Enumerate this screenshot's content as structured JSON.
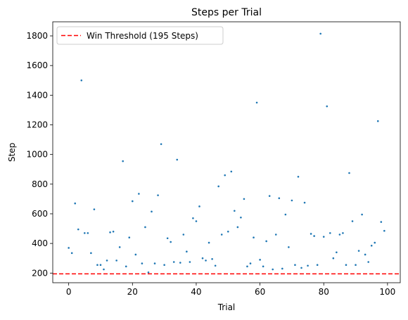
{
  "chart_data": {
    "type": "scatter",
    "title": "Steps per Trial",
    "xlabel": "Trial",
    "ylabel": "Step",
    "xlim": [
      -5,
      104
    ],
    "ylim": [
      135,
      1895
    ],
    "xticks": [
      0,
      20,
      40,
      60,
      80,
      100
    ],
    "yticks": [
      200,
      400,
      600,
      800,
      1000,
      1200,
      1400,
      1600,
      1800
    ],
    "grid": false,
    "legend_position": "top-left",
    "point_color": "#1f77b4",
    "threshold": {
      "label": "Win Threshold (195 Steps)",
      "value": 195,
      "color": "#ff0000",
      "style": "dashed"
    },
    "x": [
      0,
      1,
      2,
      3,
      4,
      5,
      6,
      7,
      8,
      9,
      10,
      11,
      12,
      13,
      14,
      15,
      16,
      17,
      18,
      19,
      20,
      21,
      22,
      23,
      24,
      25,
      26,
      27,
      28,
      29,
      30,
      31,
      32,
      33,
      34,
      35,
      36,
      37,
      38,
      39,
      40,
      41,
      42,
      43,
      44,
      45,
      46,
      47,
      48,
      49,
      50,
      51,
      52,
      53,
      54,
      55,
      56,
      57,
      58,
      59,
      60,
      61,
      62,
      63,
      64,
      65,
      66,
      67,
      68,
      69,
      70,
      71,
      72,
      73,
      74,
      75,
      76,
      77,
      78,
      79,
      80,
      81,
      82,
      83,
      84,
      85,
      86,
      87,
      88,
      89,
      90,
      91,
      92,
      93,
      94,
      95,
      96,
      97,
      98,
      99
    ],
    "y": [
      370,
      335,
      670,
      495,
      1500,
      470,
      470,
      335,
      630,
      255,
      255,
      225,
      285,
      475,
      480,
      285,
      375,
      955,
      245,
      440,
      685,
      325,
      735,
      265,
      510,
      205,
      615,
      265,
      725,
      1070,
      255,
      435,
      410,
      275,
      965,
      270,
      460,
      345,
      275,
      570,
      550,
      650,
      300,
      285,
      405,
      295,
      250,
      785,
      460,
      860,
      480,
      885,
      620,
      510,
      575,
      700,
      245,
      265,
      440,
      1350,
      290,
      245,
      415,
      720,
      225,
      460,
      705,
      230,
      595,
      375,
      690,
      255,
      850,
      235,
      675,
      250,
      465,
      450,
      255,
      1815,
      445,
      1325,
      470,
      300,
      340,
      460,
      470,
      255,
      875,
      550,
      255,
      350,
      595,
      325,
      275,
      385,
      405,
      1225,
      545,
      485
    ]
  }
}
